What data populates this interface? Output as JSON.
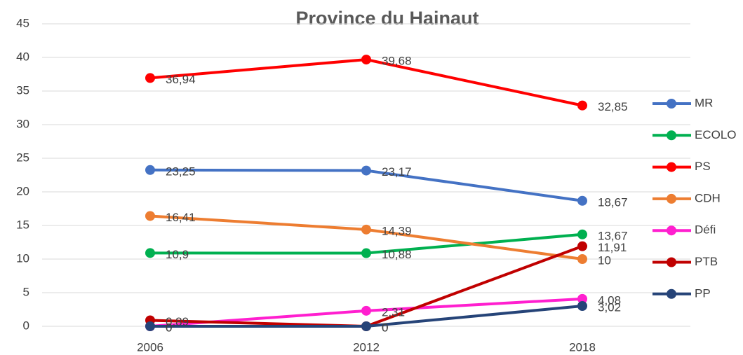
{
  "chart_data": {
    "type": "line",
    "title": "Province du Hainaut",
    "categories": [
      "2006",
      "2012",
      "2018"
    ],
    "series": [
      {
        "name": "MR",
        "color": "#4472c4",
        "values": [
          23.25,
          23.17,
          18.67
        ],
        "value_labels": [
          "23,25",
          "23,17",
          "18,67"
        ]
      },
      {
        "name": "ECOLO",
        "color": "#00b050",
        "values": [
          10.9,
          10.88,
          13.67
        ],
        "value_labels": [
          "10,9",
          "10,88",
          "13,67"
        ]
      },
      {
        "name": "PS",
        "color": "#ff0000",
        "values": [
          36.94,
          39.68,
          32.85
        ],
        "value_labels": [
          "36,94",
          "39,68",
          "32,85"
        ]
      },
      {
        "name": "CDH",
        "color": "#ed7d31",
        "values": [
          16.41,
          14.39,
          10
        ],
        "value_labels": [
          "16,41",
          "14,39",
          "10"
        ]
      },
      {
        "name": "Défi",
        "color": "#ff1fcf",
        "values": [
          0,
          2.31,
          4.08
        ],
        "value_labels": [
          "0",
          "2,31",
          "4,08"
        ]
      },
      {
        "name": "PTB",
        "color": "#c00000",
        "values": [
          0.89,
          0,
          11.91
        ],
        "value_labels": [
          "0,89",
          "0",
          "11,91"
        ]
      },
      {
        "name": "PP",
        "color": "#264478",
        "values": [
          0,
          0,
          3.02
        ],
        "value_labels": [
          "0",
          "0",
          "3,02"
        ]
      }
    ],
    "ylim": [
      0,
      45
    ],
    "yticks": [
      0,
      5,
      10,
      15,
      20,
      25,
      30,
      35,
      40,
      45
    ],
    "grid": true,
    "legend": "right"
  }
}
